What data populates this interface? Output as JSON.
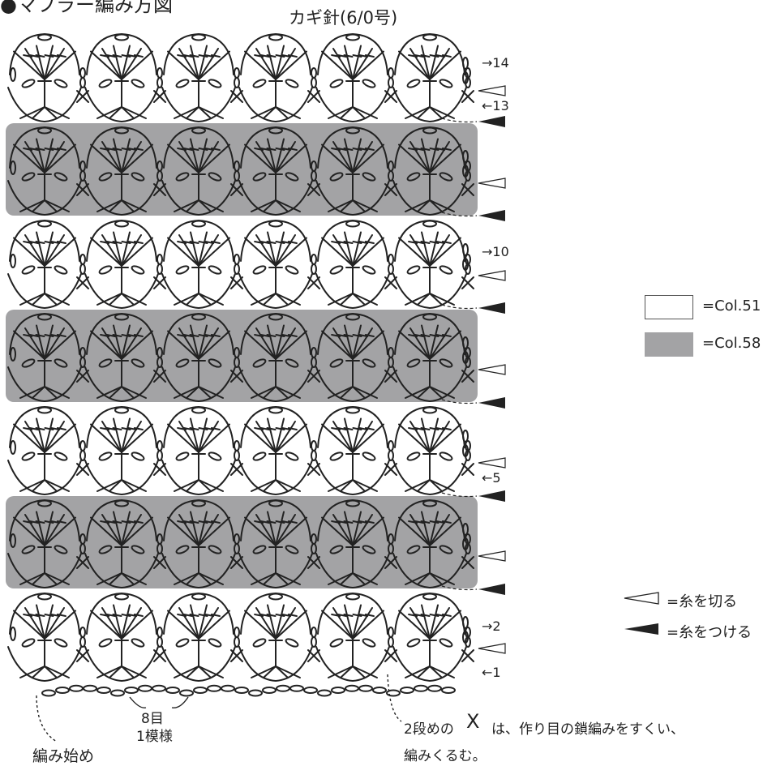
{
  "title": "●マフラー編み方図",
  "hook": "カギ針(6/0号)",
  "row_labels": [
    "→14",
    "←13",
    "→10",
    "←5",
    "→2",
    "←1"
  ],
  "colors": {
    "white_band": "#ffffff",
    "gray_band": "#a3a3a5",
    "line": "#222222"
  },
  "legend": {
    "color1": "=Col.51",
    "color2": "=Col.58",
    "cut": "=糸を切る",
    "attach": "=糸をつける"
  },
  "annotations": {
    "repeat_stitches": "8目",
    "repeat_pattern": "1模様",
    "start": "編み始め",
    "note_line1_a": "2段めの",
    "note_symbol": "X",
    "note_line1_b": "は、作り目の鎖編みをすくい、",
    "note_line2": "編みくるむ。"
  }
}
